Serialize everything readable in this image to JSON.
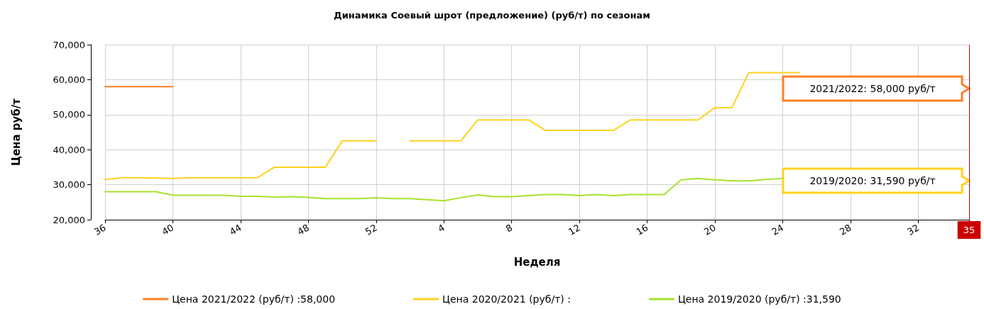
{
  "chart_data": {
    "type": "line",
    "title": "Динамика Соевый шрот (предложение) (руб/т) по сезонам",
    "xlabel": "Неделя",
    "ylabel": "Цена руб/т",
    "categories": [
      "36",
      null,
      null,
      null,
      "40",
      null,
      null,
      null,
      "44",
      null,
      null,
      null,
      "48",
      null,
      null,
      null,
      "52",
      null,
      null,
      null,
      "4",
      null,
      null,
      null,
      "8",
      null,
      null,
      null,
      "12",
      null,
      null,
      null,
      "16",
      null,
      null,
      null,
      "20",
      null,
      null,
      null,
      "24",
      null,
      null,
      null,
      "28",
      null,
      null,
      null,
      "32",
      null,
      null,
      "35"
    ],
    "series": [
      {
        "name": "Цена 2021/2022 (руб/т) :58,000",
        "color": "#ff7f27",
        "values": [
          58000,
          58000,
          58000,
          58000,
          58000,
          null,
          null,
          null,
          null,
          null,
          null,
          null,
          null,
          null,
          null,
          null,
          null,
          null,
          null,
          null,
          null,
          null,
          null,
          null,
          null,
          null,
          null,
          null,
          null,
          null,
          null,
          null,
          null,
          null,
          null,
          null,
          null,
          null,
          null,
          null,
          null,
          null,
          null,
          null,
          null,
          null,
          null,
          null,
          null,
          null,
          null,
          null
        ]
      },
      {
        "name": "Цена 2020/2021 (руб/т) :",
        "color": "#ffd21f",
        "values": [
          31500,
          32000,
          32000,
          31900,
          31800,
          32000,
          32000,
          32000,
          32000,
          32000,
          35000,
          35000,
          35000,
          35000,
          42500,
          42500,
          42500,
          null,
          42500,
          42500,
          42500,
          42500,
          48500,
          48500,
          48500,
          48500,
          45500,
          45500,
          45500,
          45500,
          45500,
          48500,
          48500,
          48500,
          48500,
          48500,
          52000,
          52000,
          62000,
          62000,
          62000,
          62000,
          null,
          null,
          null,
          null,
          null,
          null,
          null,
          null,
          null,
          null
        ]
      },
      {
        "name": "Цена 2019/2020 (руб/т) :31,590",
        "color": "#a6e22e",
        "values": [
          28000,
          28000,
          28000,
          28000,
          27000,
          27000,
          27000,
          27000,
          26700,
          26700,
          26500,
          26600,
          26400,
          26000,
          26000,
          26000,
          26300,
          26000,
          26000,
          25700,
          25400,
          26300,
          27100,
          26600,
          26600,
          26900,
          27200,
          27200,
          26900,
          27200,
          26900,
          27200,
          27200,
          27200,
          31400,
          31800,
          31400,
          31100,
          31100,
          31500,
          31800,
          null,
          null,
          null,
          null,
          null,
          null,
          null,
          null,
          null,
          null,
          null
        ]
      }
    ],
    "ylim": [
      20000,
      70000
    ],
    "yticks": [
      {
        "value": 20000,
        "label": "20,000"
      },
      {
        "value": 30000,
        "label": "30,000"
      },
      {
        "value": 40000,
        "label": "40,000"
      },
      {
        "value": 50000,
        "label": "50,000"
      },
      {
        "value": 60000,
        "label": "60,000"
      },
      {
        "value": 70000,
        "label": "70,000"
      }
    ],
    "ref_lines": [
      {
        "axis": "x",
        "value": "35",
        "label": "35",
        "color": "#cc0000"
      }
    ],
    "annotations": [
      "2021/2022: 58,000 руб/т",
      "2019/2020: 31,590 руб/т"
    ],
    "grid": true,
    "legend": "bottom",
    "marker": "none",
    "line_style": "solid"
  }
}
